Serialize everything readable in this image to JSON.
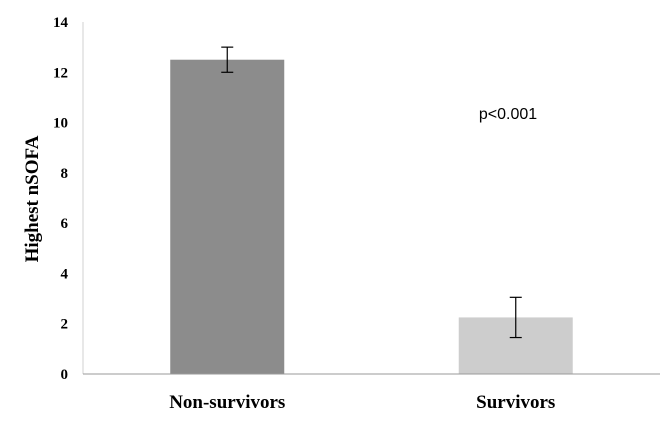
{
  "chart_data": {
    "type": "bar",
    "categories": [
      "Non-survivors",
      "Survivors"
    ],
    "values": [
      12.5,
      2.25
    ],
    "error_bars": [
      {
        "low": 12.0,
        "high": 13.0
      },
      {
        "low": 1.45,
        "high": 3.05
      }
    ],
    "colors": [
      "#8c8c8c",
      "#cdcdcd"
    ],
    "ylabel": "Highest nSOFA",
    "xlabel": "",
    "ylim": [
      0,
      14
    ],
    "yticks": [
      "0",
      "2",
      "4",
      "6",
      "8",
      "10",
      "12",
      "14"
    ],
    "annotation": "p<0.001",
    "grid": false,
    "legend": "none"
  }
}
